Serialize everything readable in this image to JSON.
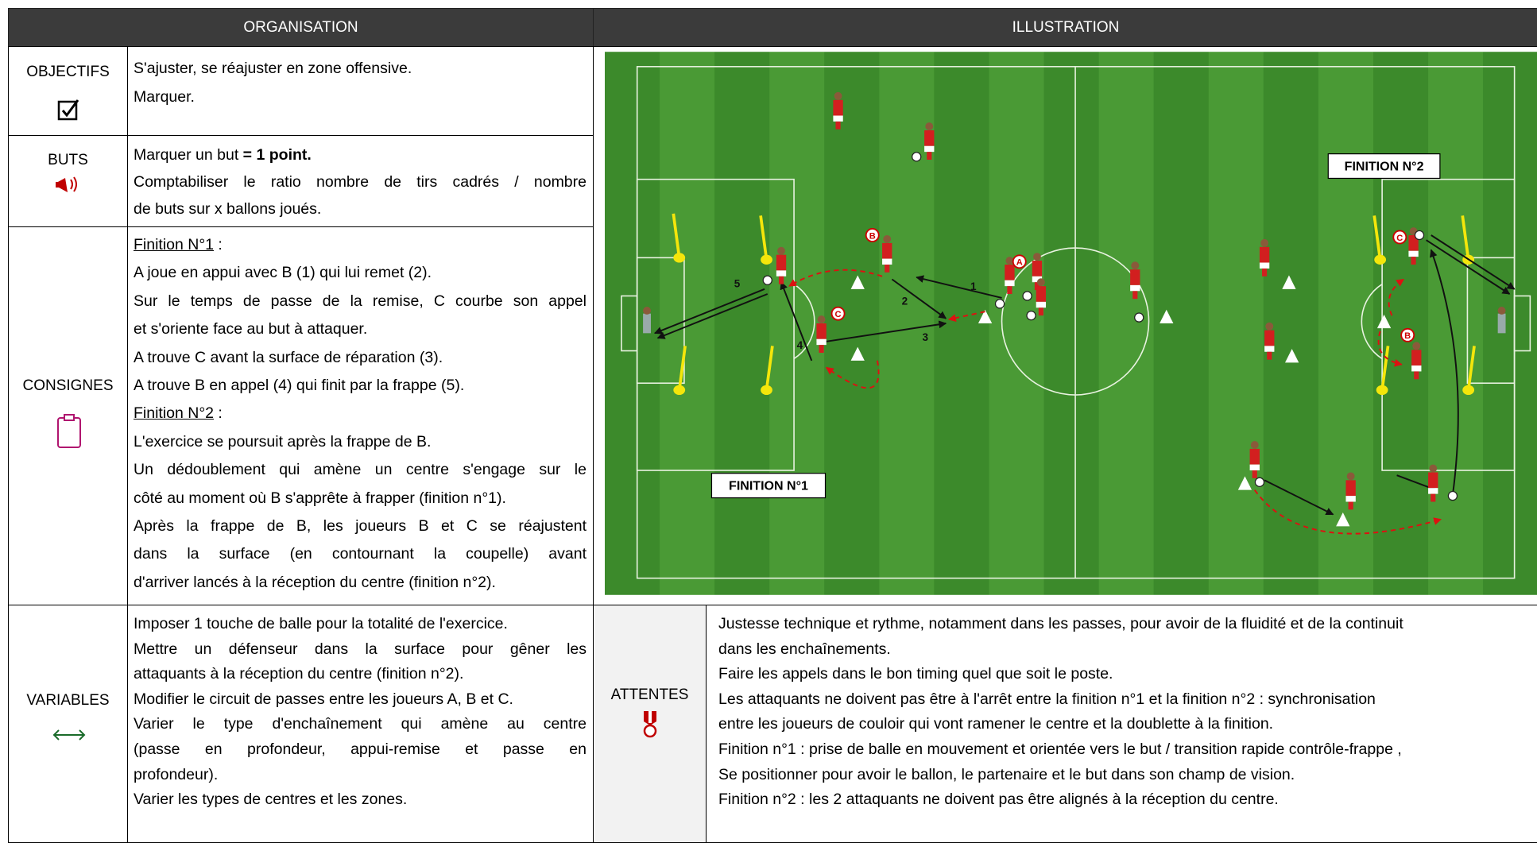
{
  "header": {
    "organisation": "ORGANISATION",
    "illustration": "ILLUSTRATION"
  },
  "objectifs": {
    "label": "OBJECTIFS",
    "lines": [
      "S'ajuster, se réajuster en zone offensive.",
      "Marquer."
    ]
  },
  "buts": {
    "label": "BUTS",
    "lead": "Marquer un but ",
    "bold": "= 1 point.",
    "lines": [
      "Comptabiliser le ratio nombre de tirs cadrés / nombre",
      "de buts sur x ballons joués."
    ]
  },
  "consignes": {
    "label": "CONSIGNES",
    "title1": "Finition N°1",
    "title2": "Finition N°2",
    "colon": " :",
    "lines": [
      "A joue en appui avec B (1) qui lui remet (2).",
      "Sur le temps de passe de la remise, C courbe son appel",
      "et s'oriente face au but à attaquer.",
      "A trouve C avant la surface de réparation (3).",
      "A trouve B en appel (4) qui finit par la frappe (5).",
      "L'exercice se poursuit après la frappe de B.",
      "Un dédoublement qui amène un centre s'engage sur le",
      "côté au moment où B s'apprête à frapper (finition n°1).",
      "Après la frappe de B, les joueurs B et C se réajustent",
      "dans la surface (en contournant la coupelle) avant",
      "d'arriver lancés à la réception du centre (finition n°2)."
    ]
  },
  "variables": {
    "label": "VARIABLES",
    "lines": [
      "Imposer 1 touche de balle pour la totalité de l'exercice.",
      "Mettre un défenseur dans la surface pour gêner les",
      "attaquants à la réception du centre (finition n°2).",
      "Modifier le circuit de passes entre les joueurs A, B et C.",
      "Varier le type d'enchaînement qui amène au centre",
      "(passe en profondeur, appui-remise et passe en",
      "profondeur).",
      "Varier les types de centres et les zones."
    ]
  },
  "attentes": {
    "label": "ATTENTES",
    "lines": [
      "Justesse technique et rythme, notamment dans les passes, pour avoir de la fluidité et de la continuit",
      "dans les enchaînements.",
      "Faire les appels dans le bon timing quel que soit le poste.",
      "Les attaquants ne doivent pas être à l'arrêt entre la finition n°1 et la finition n°2 : synchronisation",
      "entre les joueurs de couloir qui vont ramener le centre et la doublette à la finition.",
      "Finition n°1 : prise de balle en mouvement et orientée vers le but / transition rapide contrôle-frappe ,",
      "Se positionner pour avoir le ballon, le partenaire et le but dans son champ de vision.",
      "Finition n°2 : les 2 attaquants ne doivent pas être alignés à la réception du centre."
    ]
  },
  "illustration": {
    "finition1": "FINITION N°1",
    "finition2": "FINITION N°2",
    "players": [
      "A",
      "B",
      "C"
    ],
    "passes": [
      "1",
      "2",
      "3",
      "4",
      "5"
    ]
  }
}
